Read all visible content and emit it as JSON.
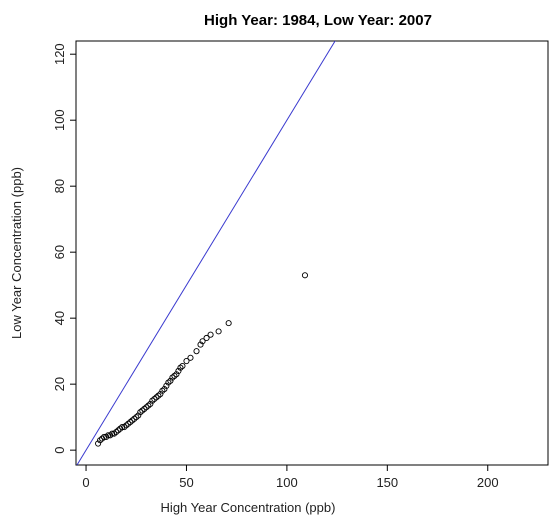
{
  "chart_data": {
    "type": "scatter",
    "title": "High Year: 1984, Low Year: 2007",
    "xlabel": "High Year Concentration (ppb)",
    "ylabel": "Low Year Concentration (ppb)",
    "xlim": [
      -5,
      230
    ],
    "ylim": [
      -4.5,
      124
    ],
    "x_ticks": [
      0,
      50,
      100,
      150,
      200
    ],
    "y_ticks": [
      0,
      20,
      40,
      60,
      80,
      100,
      120
    ],
    "grid": false,
    "legend": "none",
    "series": [
      {
        "marker": "open-circle",
        "color": "#000000",
        "points": [
          [
            6,
            2
          ],
          [
            7,
            3
          ],
          [
            8,
            3.5
          ],
          [
            9,
            4
          ],
          [
            10,
            4
          ],
          [
            11,
            4.5
          ],
          [
            12,
            4.5
          ],
          [
            13,
            5
          ],
          [
            14,
            5
          ],
          [
            15,
            5.5
          ],
          [
            16,
            6
          ],
          [
            17,
            6.5
          ],
          [
            18,
            7
          ],
          [
            19,
            7
          ],
          [
            20,
            7.5
          ],
          [
            21,
            8
          ],
          [
            22,
            8.5
          ],
          [
            23,
            9
          ],
          [
            24,
            9.5
          ],
          [
            25,
            10
          ],
          [
            26,
            10.5
          ],
          [
            27,
            11.5
          ],
          [
            28,
            12
          ],
          [
            29,
            12.5
          ],
          [
            30,
            13
          ],
          [
            31,
            13.5
          ],
          [
            32,
            14
          ],
          [
            33,
            15
          ],
          [
            34,
            15.5
          ],
          [
            35,
            16
          ],
          [
            36,
            16.5
          ],
          [
            37,
            17
          ],
          [
            38,
            18
          ],
          [
            39,
            18.5
          ],
          [
            40,
            19.5
          ],
          [
            41,
            20.5
          ],
          [
            42,
            21
          ],
          [
            43,
            22
          ],
          [
            44,
            22.5
          ],
          [
            45,
            23
          ],
          [
            46,
            24
          ],
          [
            47,
            25
          ],
          [
            48,
            25.5
          ],
          [
            50,
            27
          ],
          [
            52,
            28
          ],
          [
            55,
            30
          ],
          [
            57,
            32
          ],
          [
            58,
            33
          ],
          [
            60,
            34
          ],
          [
            62,
            35
          ],
          [
            66,
            36
          ],
          [
            71,
            38.5
          ],
          [
            109,
            53
          ]
        ]
      }
    ],
    "reference_line": {
      "type": "y=x",
      "color": "#3a3acf"
    }
  }
}
